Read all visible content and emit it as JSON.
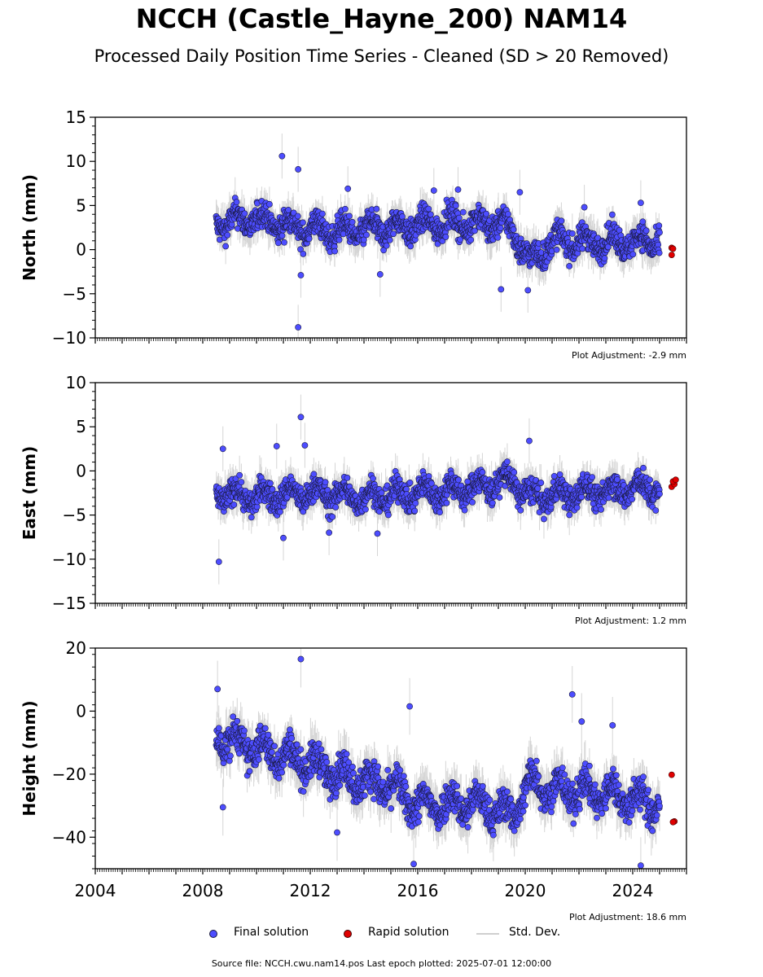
{
  "figure": {
    "title": "NCCH (Castle_Hayne_200) NAM14",
    "subtitle": "Processed Daily Position Time Series - Cleaned (SD > 20 Removed)",
    "footer": "Source file: NCCH.cwu.nam14.pos  Last epoch plotted: 2025-07-01 12:00:00"
  },
  "legend": {
    "final_label": "Final solution",
    "rapid_label": "Rapid solution",
    "std_label": "Std. Dev."
  },
  "colors": {
    "final": "#4d4dff",
    "rapid": "#e00000",
    "marker_edge": "#1a1a40",
    "std": "#b4b4b4"
  },
  "chart_data": [
    {
      "type": "scatter",
      "ylabel": "North (mm)",
      "ylim": [
        -10,
        15
      ],
      "yticks": [
        -10,
        -5,
        0,
        5,
        10,
        15
      ],
      "xlim": [
        2004,
        2026
      ],
      "show_xtick_labels": false,
      "adjustment": "Plot Adjustment: -2.9 mm",
      "series_note": "approximate trend of the dense final-solution cloud",
      "trend": {
        "x": [
          2008.5,
          2010,
          2011.5,
          2013,
          2015,
          2017,
          2019,
          2019.6,
          2020.2,
          2021,
          2023,
          2025.0
        ],
        "y": [
          3.0,
          3.5,
          2.5,
          2.0,
          2.5,
          3.0,
          3.0,
          2.0,
          -1.5,
          1.0,
          0.8,
          1.0
        ]
      },
      "noise": 1.7,
      "final_outliers": {
        "x": [
          2010.95,
          2011.55,
          2011.55,
          2011.65,
          2013.4,
          2014.6,
          2016.6,
          2017.5,
          2019.1,
          2019.8,
          2020.1,
          2022.2,
          2024.3
        ],
        "y": [
          10.6,
          9.1,
          -8.8,
          -2.9,
          6.9,
          -2.8,
          6.7,
          6.8,
          -4.5,
          6.5,
          -4.6,
          4.8,
          5.3
        ]
      },
      "rapid": {
        "x": [
          2025.45,
          2025.5,
          2025.45
        ],
        "y": [
          0.2,
          0.1,
          -0.6
        ]
      }
    },
    {
      "type": "scatter",
      "ylabel": "East (mm)",
      "ylim": [
        -15,
        10
      ],
      "yticks": [
        -15,
        -10,
        -5,
        0,
        5,
        10
      ],
      "xlim": [
        2004,
        2026
      ],
      "show_xtick_labels": false,
      "adjustment": "Plot Adjustment: 1.2 mm",
      "series_note": "approximate trend of the dense final-solution cloud",
      "trend": {
        "x": [
          2008.5,
          2010,
          2012,
          2014,
          2016,
          2018,
          2019.5,
          2020.2,
          2022,
          2024,
          2025.0
        ],
        "y": [
          -2.5,
          -3.0,
          -2.5,
          -3.0,
          -2.5,
          -2.0,
          -1.0,
          -3.0,
          -2.5,
          -2.0,
          -2.0
        ]
      },
      "noise": 1.7,
      "final_outliers": {
        "x": [
          2008.6,
          2008.75,
          2010.75,
          2011.0,
          2011.65,
          2011.8,
          2012.7,
          2014.5,
          2020.15
        ],
        "y": [
          -10.3,
          2.5,
          2.8,
          -7.6,
          6.1,
          2.9,
          -7.0,
          -7.1,
          3.4
        ]
      },
      "rapid": {
        "x": [
          2025.45,
          2025.55,
          2025.5,
          2025.6
        ],
        "y": [
          -1.8,
          -1.5,
          -1.2,
          -1.0
        ]
      }
    },
    {
      "type": "scatter",
      "ylabel": "Height (mm)",
      "ylim": [
        -50,
        20
      ],
      "yticks": [
        -40,
        -20,
        0,
        20
      ],
      "xlim": [
        2004,
        2026
      ],
      "xticks": [
        2004,
        2008,
        2012,
        2016,
        2020,
        2024
      ],
      "show_xtick_labels": true,
      "adjustment": "Plot Adjustment: 18.6 mm",
      "series_note": "approximate trend of the dense final-solution cloud",
      "trend": {
        "x": [
          2008.5,
          2010,
          2011.5,
          2013,
          2015,
          2016,
          2018,
          2019.5,
          2020.2,
          2021,
          2023,
          2025.0
        ],
        "y": [
          -8,
          -12,
          -15,
          -20,
          -24,
          -30,
          -29,
          -33,
          -22,
          -25,
          -26,
          -30
        ]
      },
      "noise": 6.0,
      "final_outliers": {
        "x": [
          2008.55,
          2008.75,
          2011.65,
          2013.0,
          2015.7,
          2015.85,
          2021.75,
          2022.1,
          2023.25,
          2024.3
        ],
        "y": [
          7.0,
          -30.5,
          16.5,
          -38.5,
          1.5,
          -48.5,
          5.3,
          -3.3,
          -4.5,
          -49.0
        ]
      },
      "rapid": {
        "x": [
          2025.45,
          2025.55,
          2025.5
        ],
        "y": [
          -20.2,
          -35.0,
          -35.2
        ]
      }
    }
  ]
}
